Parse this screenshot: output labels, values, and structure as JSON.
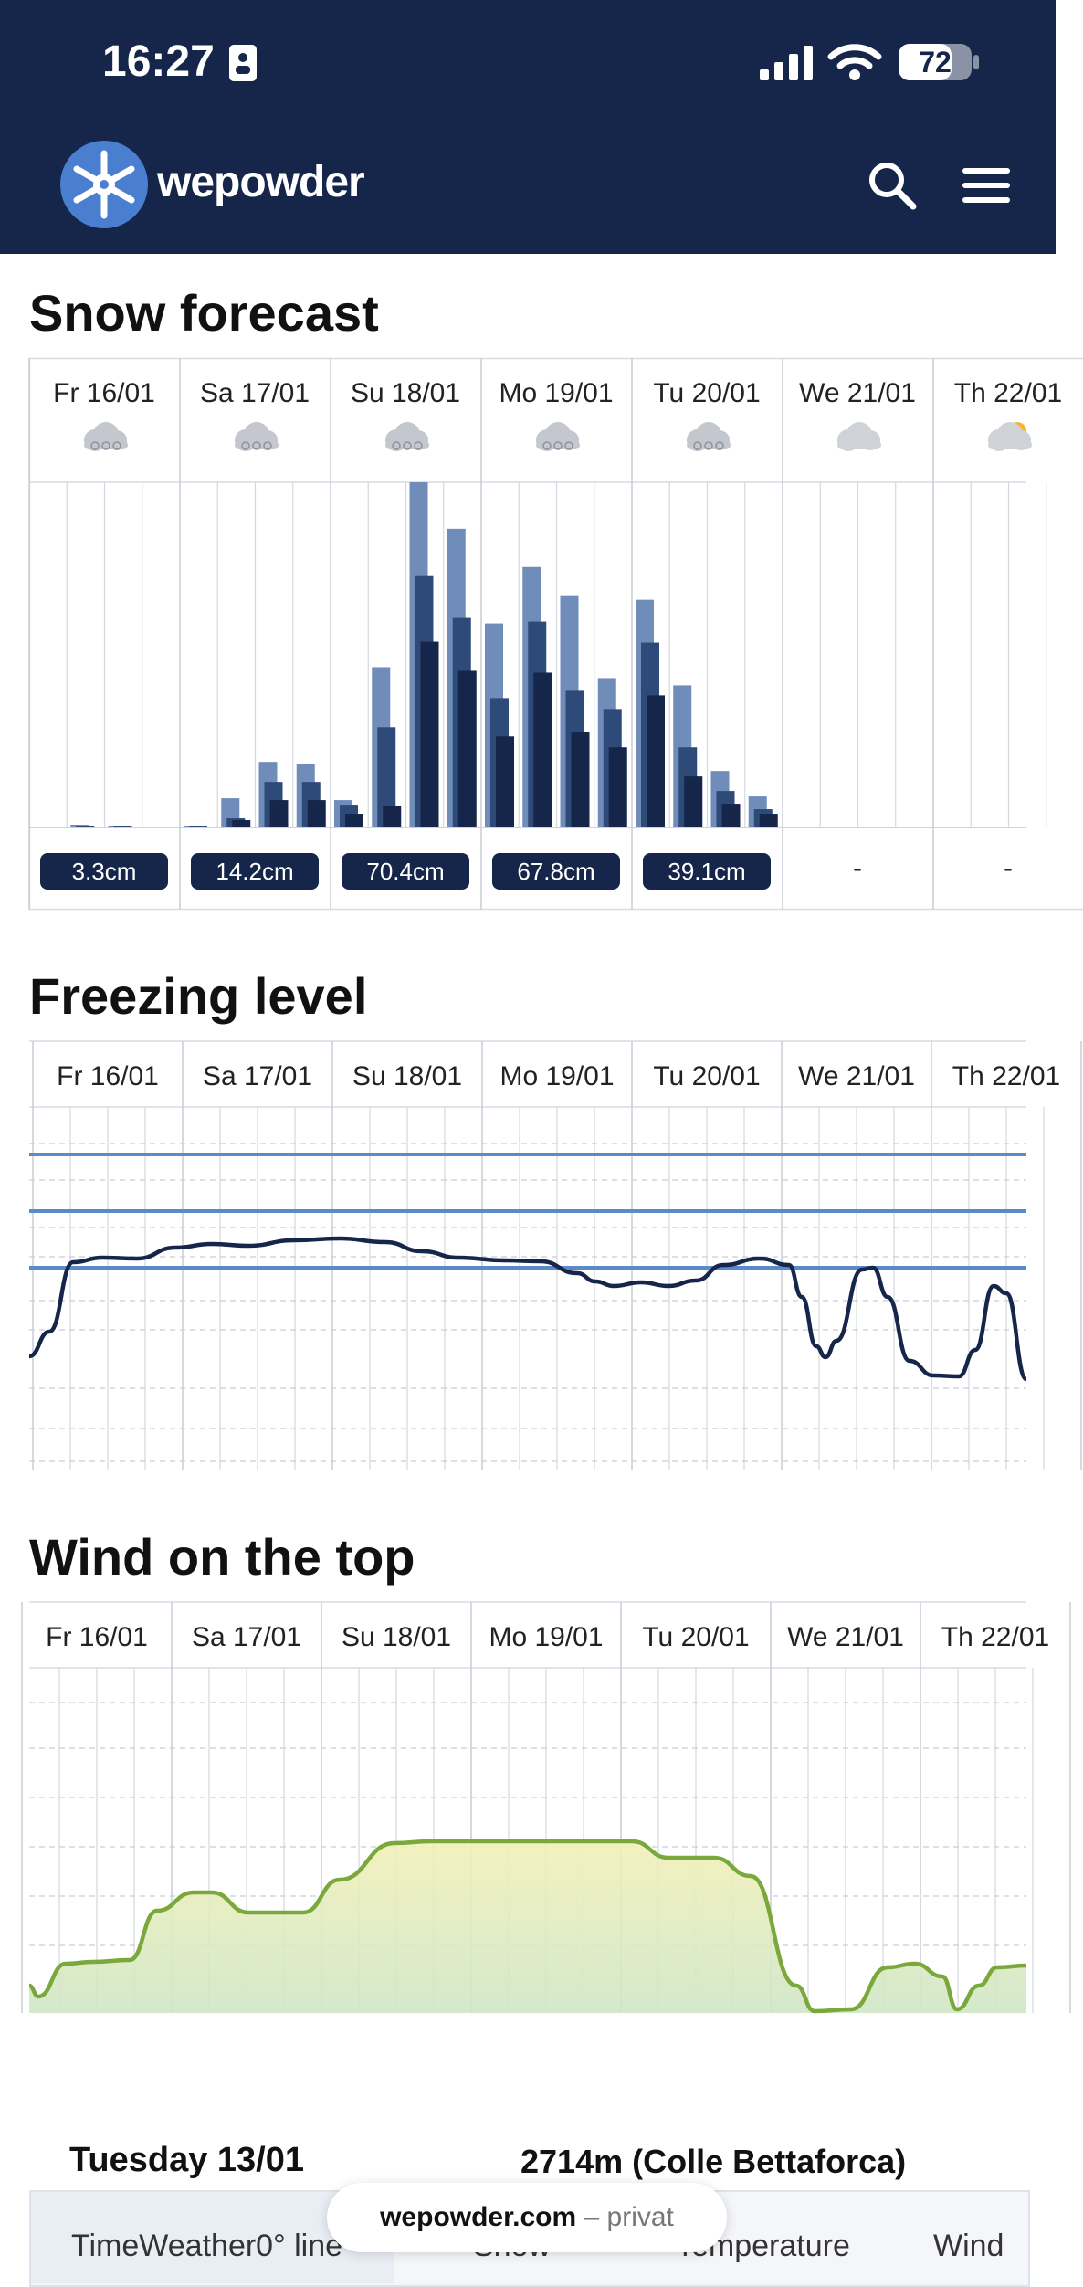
{
  "status_bar": {
    "time": "16:27",
    "battery": "72"
  },
  "app": {
    "name": "wepowder"
  },
  "snow_forecast": {
    "title": "Snow forecast",
    "days": [
      "Fr 16/01",
      "Sa 17/01",
      "Su 18/01",
      "Mo 19/01",
      "Tu 20/01",
      "We 21/01",
      "Th 22/01"
    ],
    "weather_icons": [
      "snow-cloud-icon",
      "snow-cloud-icon",
      "snow-cloud-icon",
      "snow-cloud-icon",
      "snow-cloud-icon",
      "cloud-icon",
      "sun-cloud-icon"
    ],
    "totals": [
      "3.3cm",
      "14.2cm",
      "70.4cm",
      "67.8cm",
      "39.1cm",
      "-",
      "-"
    ]
  },
  "freezing_level": {
    "title": "Freezing level",
    "days": [
      "Fr 16/01",
      "Sa 17/01",
      "Su 18/01",
      "Mo 19/01",
      "Tu 20/01",
      "We 21/01",
      "Th 22/01"
    ]
  },
  "wind_top": {
    "title": "Wind on the top",
    "days": [
      "Fr 16/01",
      "Sa 17/01",
      "Su 18/01",
      "Mo 19/01",
      "Tu 20/01",
      "We 21/01",
      "Th 22/01"
    ]
  },
  "history": {
    "date": "Tuesday 13/01",
    "station": "2714m (Colle Bettaforca)",
    "columns": [
      "TimeWeather0° line",
      "Snow",
      "Temperature",
      "Wind"
    ]
  },
  "url_bar": {
    "domain": "wepowder.com",
    "suffix": "– privat"
  },
  "colors": {
    "navy": "#15264a",
    "bar_light": "#6f8db8",
    "bar_mid": "#2e4a78",
    "bar_dark": "#15264a",
    "freeze_line": "#5b8ac9",
    "wind_line": "#7aa83a"
  }
}
